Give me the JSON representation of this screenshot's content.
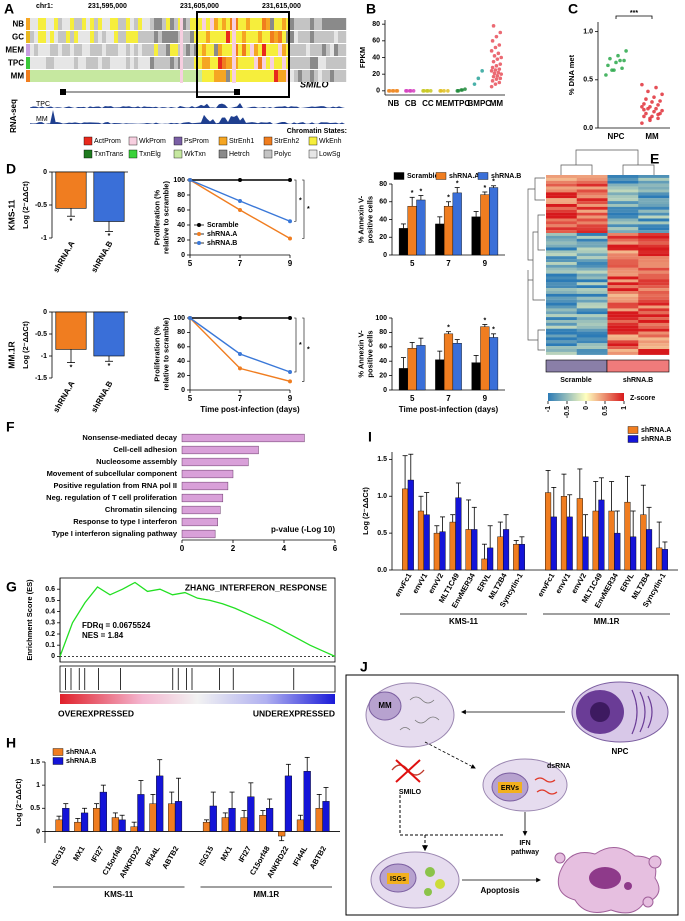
{
  "panel_a": {
    "label": "A",
    "chrom": "chr1:",
    "coords": [
      "231,595,000",
      "231,605,000",
      "231,615,000"
    ],
    "tracks": [
      "NB",
      "GC",
      "MEM",
      "TPC",
      "MM"
    ],
    "gene": "SMILO",
    "rnaseq_label": "RNA-seq",
    "rnaseq_tracks": [
      "TPC",
      "MM"
    ],
    "legend_title": "Chromatin States:",
    "states": [
      {
        "name": "ActProm",
        "color": "#e8291c"
      },
      {
        "name": "WkProm",
        "color": "#f7cfe0"
      },
      {
        "name": "PsProm",
        "color": "#7a5fa5"
      },
      {
        "name": "StrEnh1",
        "color": "#f5a623"
      },
      {
        "name": "StrEnh2",
        "color": "#f07d1e"
      },
      {
        "name": "WkEnh",
        "color": "#f6ee3c"
      },
      {
        "name": "TxnTrans",
        "color": "#1f7a1f"
      },
      {
        "name": "TxnElg",
        "color": "#3ad23a"
      },
      {
        "name": "WkTxn",
        "color": "#c6e8a0"
      },
      {
        "name": "Hetrch",
        "color": "#8a8a8a"
      },
      {
        "name": "Polyc",
        "color": "#c4c4c4"
      },
      {
        "name": "LowSg",
        "color": "#e6e6e6"
      }
    ]
  },
  "panel_e": {
    "label": "E",
    "groups": [
      "Scramble",
      "shRNA.B"
    ],
    "colorbar_title": "Z-score",
    "colorbar_ticks": [
      -1,
      -0.5,
      0,
      0.5,
      1
    ]
  },
  "panel_j": {
    "label": "J",
    "mm": "MM",
    "npc": "NPC",
    "smilo": "SMILO",
    "dsrna": "dsRNA",
    "ervs": "ERVs",
    "ifn_pathway": [
      "IFN",
      "pathway"
    ],
    "isgs": "ISGs",
    "apoptosis": "Apoptosis"
  },
  "chart_data": [
    {
      "type": "strip",
      "panel": "B",
      "y_label": "FPKM",
      "categories": [
        "NB",
        "CB",
        "CC",
        "MEM",
        "TPC",
        "BMPC",
        "MM"
      ],
      "colors": [
        "#f08a24",
        "#d63fbf",
        "#c8c820",
        "#e0c020",
        "#1f8a3a",
        "#2aa39a",
        "#e8505a"
      ],
      "values": [
        [
          0,
          0,
          0,
          0,
          0,
          0
        ],
        [
          0,
          0,
          0,
          0,
          0
        ],
        [
          0,
          0,
          0,
          0,
          0
        ],
        [
          0,
          0,
          0,
          0
        ],
        [
          0,
          1,
          2,
          0,
          1
        ],
        [
          8,
          15,
          24
        ],
        [
          5,
          8,
          10,
          12,
          14,
          15,
          17,
          18,
          20,
          21,
          22,
          24,
          25,
          26,
          28,
          30,
          32,
          35,
          38,
          40,
          42,
          45,
          48,
          52,
          55,
          60,
          65,
          70,
          78
        ]
      ],
      "ylim": [
        -5,
        85
      ],
      "yticks": [
        0,
        20,
        40,
        60,
        80
      ]
    },
    {
      "type": "strip",
      "panel": "C",
      "y_label": "% DNA met",
      "categories": [
        "NPC",
        "MM"
      ],
      "colors": [
        "#2aa84a",
        "#e0303a"
      ],
      "values": [
        [
          0.55,
          0.6,
          0.62,
          0.65,
          0.68,
          0.7,
          0.72,
          0.75,
          0.8,
          0.6,
          0.7
        ],
        [
          0.05,
          0.08,
          0.1,
          0.12,
          0.12,
          0.15,
          0.15,
          0.17,
          0.18,
          0.2,
          0.2,
          0.22,
          0.22,
          0.24,
          0.25,
          0.27,
          0.28,
          0.3,
          0.32,
          0.35,
          0.38,
          0.42,
          0.45,
          0.1,
          0.14,
          0.19
        ]
      ],
      "ylim": [
        0,
        1.1
      ],
      "yticks": [
        {
          "value": 0,
          "label": "0.0"
        },
        {
          "value": 0.5,
          "label": "0.5"
        },
        {
          "value": 1,
          "label": "1.0"
        }
      ],
      "annotation": "***"
    },
    {
      "type": "bar",
      "panel": "D",
      "row_label": "KMS-11",
      "y_label": "Log (2⁻ΔΔCt)",
      "categories": [
        "shRNA.A",
        "shRNA.B"
      ],
      "values": [
        -0.55,
        -0.75
      ],
      "errors": [
        0.12,
        0.15
      ],
      "colors": [
        "#f07d20",
        "#3a6fd8"
      ],
      "significance": [
        "*",
        "*"
      ],
      "ylim": [
        -1,
        0
      ],
      "yticks": [
        0,
        -0.5,
        -1
      ]
    },
    {
      "type": "line",
      "y_label": [
        "Proliferation (%",
        "relative to scramble)"
      ],
      "x": [
        5,
        7,
        9
      ],
      "xlim": [
        5,
        9
      ],
      "xticks": [
        5,
        7,
        9
      ],
      "series": [
        {
          "name": "Scramble",
          "color": "#000000",
          "values": [
            100,
            100,
            100
          ]
        },
        {
          "name": "shRNA.A",
          "color": "#f07d20",
          "values": [
            100,
            60,
            22
          ]
        },
        {
          "name": "shRNA.B",
          "color": "#3a78d8",
          "values": [
            100,
            72,
            45
          ]
        }
      ],
      "ylim": [
        0,
        100
      ],
      "yticks": [
        0,
        20,
        40,
        60,
        80,
        100
      ],
      "legend": "bottom-left",
      "annotations": [
        "*",
        "*"
      ]
    },
    {
      "type": "grouped_bar",
      "y_label": [
        "% Annexin V-",
        "positive cells"
      ],
      "categories": [
        5,
        7,
        9
      ],
      "series": [
        {
          "name": "Scramble",
          "color": "#000000",
          "values": [
            30,
            35,
            43
          ],
          "errors": [
            5,
            8,
            6
          ],
          "significance": [
            null,
            null,
            null
          ]
        },
        {
          "name": "shRNA.A",
          "color": "#f07d20",
          "values": [
            55,
            55,
            68
          ],
          "errors": [
            10,
            5,
            3
          ],
          "significance": [
            "*",
            "*",
            "*"
          ]
        },
        {
          "name": "shRNA.B",
          "color": "#3a6fd8",
          "values": [
            62,
            70,
            76
          ],
          "errors": [
            5,
            6,
            2
          ],
          "significance": [
            "*",
            "*",
            "*"
          ]
        }
      ],
      "ylim": [
        0,
        80
      ],
      "yticks": [
        0,
        20,
        40,
        60,
        80
      ],
      "legend": "top"
    },
    {
      "type": "bar",
      "row_label": "MM.1R",
      "y_label": "Log (2⁻ΔΔCt)",
      "categories": [
        "shRNA.A",
        "shRNA.B"
      ],
      "values": [
        -0.85,
        -1.0
      ],
      "errors": [
        0.3,
        0.12
      ],
      "colors": [
        "#f07d20",
        "#3a6fd8"
      ],
      "significance": [
        "*",
        "*"
      ],
      "ylim": [
        -1.5,
        0
      ],
      "yticks": [
        0,
        -0.5,
        -1,
        -1.5
      ]
    },
    {
      "type": "line",
      "y_label": [
        "Proliferation (%",
        "relative to scramble)"
      ],
      "x_label": "Time post-infection (days)",
      "x": [
        5,
        7,
        9
      ],
      "xlim": [
        5,
        9
      ],
      "xticks": [
        5,
        7,
        9
      ],
      "series": [
        {
          "name": "Scramble",
          "color": "#000000",
          "values": [
            100,
            100,
            100
          ]
        },
        {
          "name": "shRNA.A",
          "color": "#f07d20",
          "values": [
            100,
            30,
            12
          ]
        },
        {
          "name": "shRNA.B",
          "color": "#3a78d8",
          "values": [
            100,
            50,
            25
          ]
        }
      ],
      "ylim": [
        0,
        100
      ],
      "yticks": [
        0,
        20,
        40,
        60,
        80,
        100
      ],
      "annotations": [
        "*",
        "*"
      ]
    },
    {
      "type": "grouped_bar",
      "y_label": [
        "% Annexin V-",
        "positive cells"
      ],
      "x_label": "Time post-infection (days)",
      "categories": [
        5,
        7,
        9
      ],
      "series": [
        {
          "name": "Scramble",
          "color": "#000000",
          "values": [
            30,
            42,
            38
          ],
          "errors": [
            15,
            12,
            10
          ],
          "significance": [
            null,
            null,
            null
          ]
        },
        {
          "name": "shRNA.A",
          "color": "#f07d20",
          "values": [
            58,
            78,
            88
          ],
          "errors": [
            8,
            3,
            3
          ],
          "significance": [
            null,
            "*",
            "*"
          ]
        },
        {
          "name": "shRNA.B",
          "color": "#3a6fd8",
          "values": [
            62,
            65,
            73
          ],
          "errors": [
            10,
            5,
            5
          ],
          "significance": [
            null,
            null,
            "*"
          ]
        }
      ],
      "ylim": [
        0,
        100
      ],
      "yticks": [
        0,
        20,
        40,
        60,
        80,
        100
      ]
    },
    {
      "type": "hbar",
      "panel": "F",
      "x_label": "p-value (-Log 10)",
      "color": "#d9a0d9",
      "categories": [
        "Nonsense-mediated decay",
        "Cell-cell adhesion",
        "Nucleosome assembly",
        "Movement of subcellular component",
        "Positive regulation from RNA pol II",
        "Neg. regulation of T cell proliferation",
        "Chromatin silencing",
        "Response to type I interferon",
        "Type I interferon signaling pathway"
      ],
      "values": [
        4.8,
        3.0,
        2.6,
        2.0,
        1.8,
        1.6,
        1.5,
        1.4,
        1.3
      ],
      "xlim": [
        0,
        6
      ],
      "xticks": [
        0,
        2,
        4,
        6
      ]
    },
    {
      "type": "enrichment",
      "panel": "G",
      "y_label": "Enrichment Score (ES)",
      "title": "ZHANG_INTERFERON_RESPONSE",
      "annotations": [
        "FDRq = 0.0675524",
        "NES = 1.84"
      ],
      "x_labels": [
        "OVEREXPRESSED",
        "UNDEREXPRESSED"
      ],
      "color": "#22e022",
      "values": [
        0,
        0.3,
        0.48,
        0.62,
        0.55,
        0.6,
        0.66,
        0.58,
        0.6,
        0.55,
        0.57,
        0.52,
        0.5,
        0.47,
        0.43,
        0.38,
        0.33,
        0.28,
        0.22,
        0.16,
        0.1,
        0.05,
        0
      ],
      "ylim": [
        -0.05,
        0.7
      ],
      "yticks": [
        0,
        0.1,
        0.2,
        0.3,
        0.4,
        0.5,
        0.6
      ]
    },
    {
      "type": "grouped_bar",
      "panel": "H",
      "y_label": "Log (2⁻ΔΔCt)",
      "legend": "top-left",
      "ylim": [
        -0.25,
        1.5
      ],
      "yticks": [
        0,
        0.5,
        1,
        1.5
      ],
      "groups": [
        {
          "name": "KMS-11",
          "categories": [
            "ISG15",
            "MX1",
            "IFI27",
            "C15orf48",
            "ANKRD22",
            "IFI44L",
            "ABTB2"
          ],
          "series": [
            {
              "name": "shRNA.A",
              "color": "#f07d20",
              "values": [
                0.25,
                0.2,
                0.5,
                0.3,
                0.1,
                0.6,
                0.6
              ],
              "errors": [
                0.08,
                0.08,
                0.1,
                0.1,
                0.1,
                0.2,
                0.25
              ]
            },
            {
              "name": "shRNA.B",
              "color": "#1414d8",
              "values": [
                0.5,
                0.4,
                0.85,
                0.25,
                0.8,
                1.2,
                0.65
              ],
              "errors": [
                0.1,
                0.1,
                0.15,
                0.1,
                0.3,
                0.35,
                0.5
              ]
            }
          ]
        },
        {
          "name": "MM.1R",
          "categories": [
            "ISG15",
            "MX1",
            "IFI27",
            "C15orf48",
            "ANKRD22",
            "IFI44L",
            "ABTB2"
          ],
          "series": [
            {
              "name": "shRNA.A",
              "color": "#f07d20",
              "values": [
                0.2,
                0.3,
                0.3,
                0.35,
                -0.1,
                0.25,
                0.5
              ],
              "errors": [
                0.05,
                0.1,
                0.15,
                0.1,
                0.1,
                0.1,
                0.3
              ]
            },
            {
              "name": "shRNA.B",
              "color": "#1414d8",
              "values": [
                0.55,
                0.5,
                0.75,
                0.5,
                1.2,
                1.3,
                0.65
              ],
              "errors": [
                0.3,
                0.35,
                0.3,
                0.2,
                0.25,
                0.3,
                0.3
              ]
            }
          ]
        }
      ]
    },
    {
      "type": "grouped_bar",
      "panel": "I",
      "y_label": "Log (2⁻ΔΔCt)",
      "legend": "top-right",
      "ylim": [
        0,
        1.6
      ],
      "yticks": [
        {
          "value": 0,
          "label": "0.0"
        },
        0.5,
        {
          "value": 1,
          "label": "1.0"
        },
        1.5
      ],
      "groups": [
        {
          "name": "KMS-11",
          "categories": [
            "envFc1",
            "envV1",
            "envV2",
            "MLT1C49",
            "EnvMER34",
            "ERVL",
            "MLT2B4",
            "Syncytin-1"
          ],
          "series": [
            {
              "name": "shRNA.A",
              "color": "#f07d20",
              "values": [
                1.1,
                0.8,
                0.5,
                0.65,
                0.55,
                0.15,
                0.45,
                0.35
              ],
              "errors": [
                0.45,
                0.2,
                0.1,
                0.1,
                0.4,
                0.2,
                0.2,
                0.05
              ]
            },
            {
              "name": "shRNA.B",
              "color": "#1414d8",
              "values": [
                1.22,
                0.75,
                0.52,
                0.98,
                0.55,
                0.3,
                0.55,
                0.35
              ],
              "errors": [
                0.35,
                0.3,
                0.2,
                0.2,
                0.3,
                0.3,
                0.2,
                0.1
              ]
            }
          ]
        },
        {
          "name": "MM.1R",
          "categories": [
            "envFc1",
            "envV1",
            "envV2",
            "MLT1C49",
            "EnvMER34",
            "ERVL",
            "MLT2B4",
            "Syncytin-1"
          ],
          "series": [
            {
              "name": "shRNA.A",
              "color": "#f07d20",
              "values": [
                1.05,
                1.0,
                0.97,
                0.8,
                0.8,
                0.92,
                0.75,
                0.3
              ],
              "errors": [
                0.3,
                0.3,
                0.4,
                0.4,
                0.4,
                0.35,
                0.4,
                0.35
              ]
            },
            {
              "name": "shRNA.B",
              "color": "#1414d8",
              "values": [
                0.72,
                0.72,
                0.45,
                0.95,
                0.5,
                0.45,
                0.55,
                0.28
              ],
              "errors": [
                0.4,
                0.3,
                0.3,
                0.3,
                0.3,
                0.35,
                0.3,
                0.1
              ]
            }
          ]
        }
      ]
    }
  ]
}
